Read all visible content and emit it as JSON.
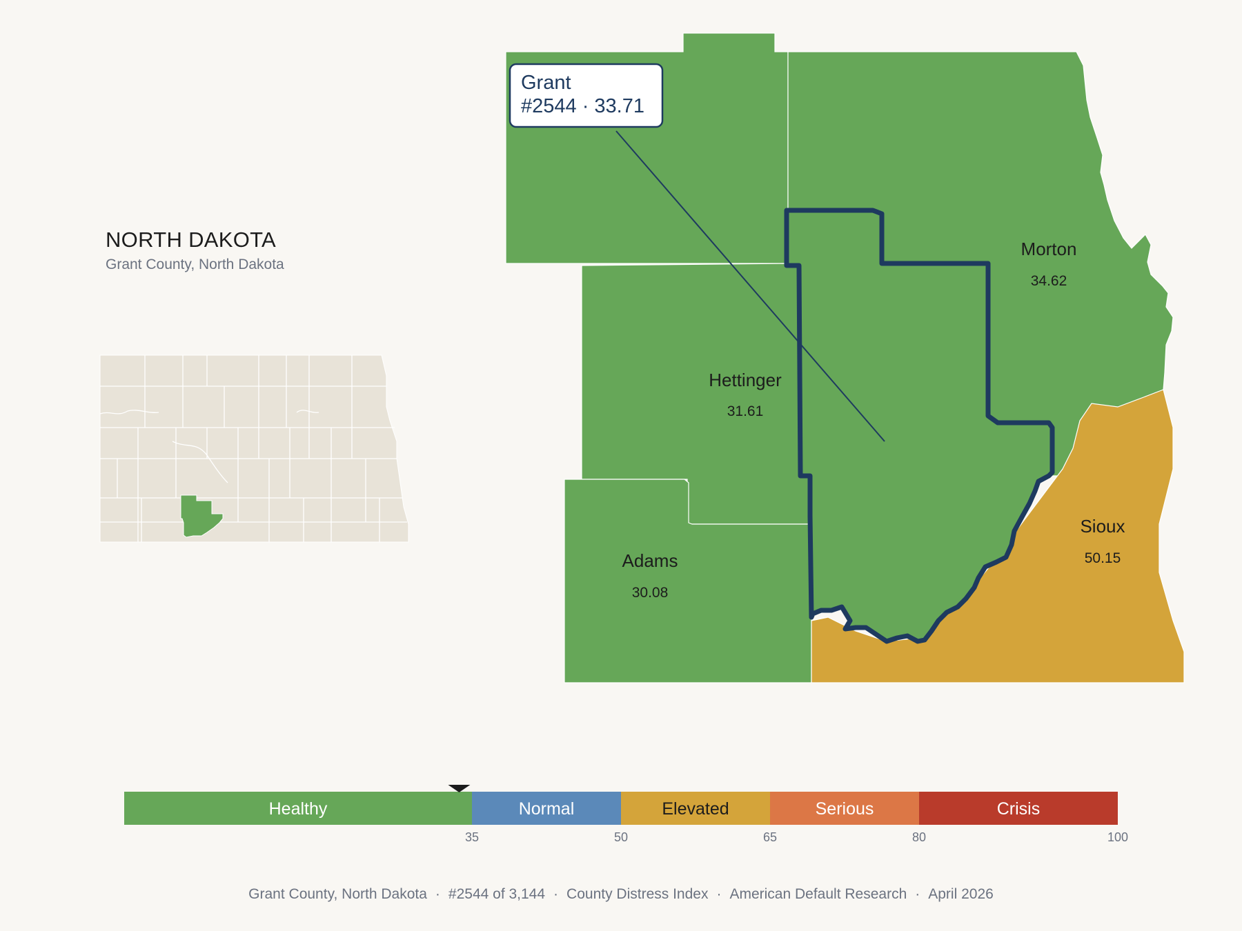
{
  "state": {
    "title": "NORTH DAKOTA",
    "subtitle": "Grant County, North Dakota"
  },
  "callout": {
    "name": "Grant",
    "detail": "#2544 · 33.71"
  },
  "counties": [
    {
      "name": "Morton",
      "score": "34.62"
    },
    {
      "name": "Hettinger",
      "score": "31.61"
    },
    {
      "name": "Adams",
      "score": "30.08"
    },
    {
      "name": "Sioux",
      "score": "50.15"
    }
  ],
  "legend": {
    "segments": [
      {
        "label": "Healthy",
        "color": "#66a758"
      },
      {
        "label": "Normal",
        "color": "#5b89b9"
      },
      {
        "label": "Elevated",
        "color": "#d4a43a"
      },
      {
        "label": "Serious",
        "color": "#dc7746"
      },
      {
        "label": "Crisis",
        "color": "#b93b2b"
      }
    ],
    "ticks": [
      "35",
      "50",
      "65",
      "80",
      "100"
    ],
    "marker_value": 33.71
  },
  "footer": [
    "Grant County, North Dakota",
    "#2544 of 3,144",
    "County Distress Index",
    "American Default Research",
    "April 2026"
  ],
  "colors": {
    "healthy": "#66a758",
    "elevated": "#d4a43a",
    "highlight_border": "#1e3a5f",
    "inset_fill": "#e8e3d8"
  }
}
